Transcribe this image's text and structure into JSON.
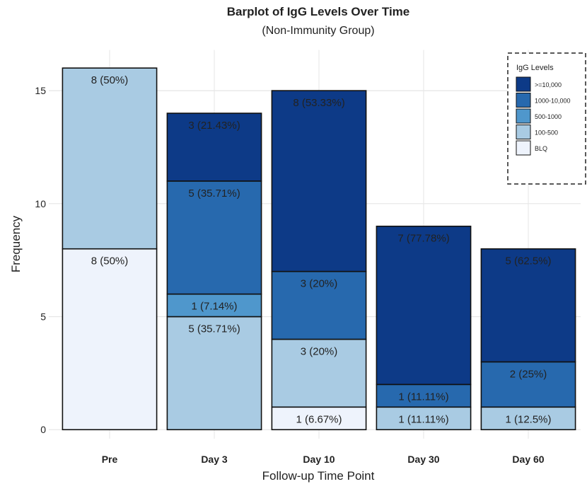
{
  "chart_data": {
    "type": "stacked_bar",
    "title": "Barplot of IgG Levels Over Time",
    "subtitle": "(Non-Immunity Group)",
    "x_label": "Follow-up Time Point",
    "y_label": "Frequency",
    "legend_title": "IgG Levels",
    "legend_position": "top-right",
    "categories": [
      "Pre",
      "Day 3",
      "Day 10",
      "Day 30",
      "Day 60"
    ],
    "series": [
      {
        "name": "BLQ",
        "color": "#eef3fc",
        "values": [
          8,
          null,
          1,
          null,
          null
        ],
        "value_labels": [
          "8 (50%)",
          null,
          "1 (6.67%)",
          null,
          null
        ]
      },
      {
        "name": "100-500",
        "color": "#a9cbe3",
        "values": [
          8,
          5,
          3,
          1,
          1
        ],
        "value_labels": [
          "8 (50%)",
          "5 (35.71%)",
          "3 (20%)",
          "1 (11.11%)",
          "1 (12.5%)"
        ]
      },
      {
        "name": "500-1000",
        "color": "#4f97cc",
        "values": [
          null,
          1,
          null,
          null,
          null
        ],
        "value_labels": [
          null,
          "1 (7.14%)",
          null,
          null,
          null
        ]
      },
      {
        "name": "1000-10,000",
        "color": "#2769ae",
        "values": [
          null,
          5,
          3,
          1,
          2
        ],
        "value_labels": [
          null,
          "5 (35.71%)",
          "3 (20%)",
          "1 (11.11%)",
          "2 (25%)"
        ]
      },
      {
        "name": ">=10,000",
        "color": "#0d3a87",
        "values": [
          null,
          3,
          8,
          7,
          5
        ],
        "value_labels": [
          null,
          "3 (21.43%)",
          "8 (53.33%)",
          "7 (77.78%)",
          "5 (62.5%)"
        ]
      }
    ],
    "ylim": [
      -0.4,
      16.8
    ],
    "yticks": [
      0,
      5,
      10,
      15
    ],
    "grid": true
  }
}
